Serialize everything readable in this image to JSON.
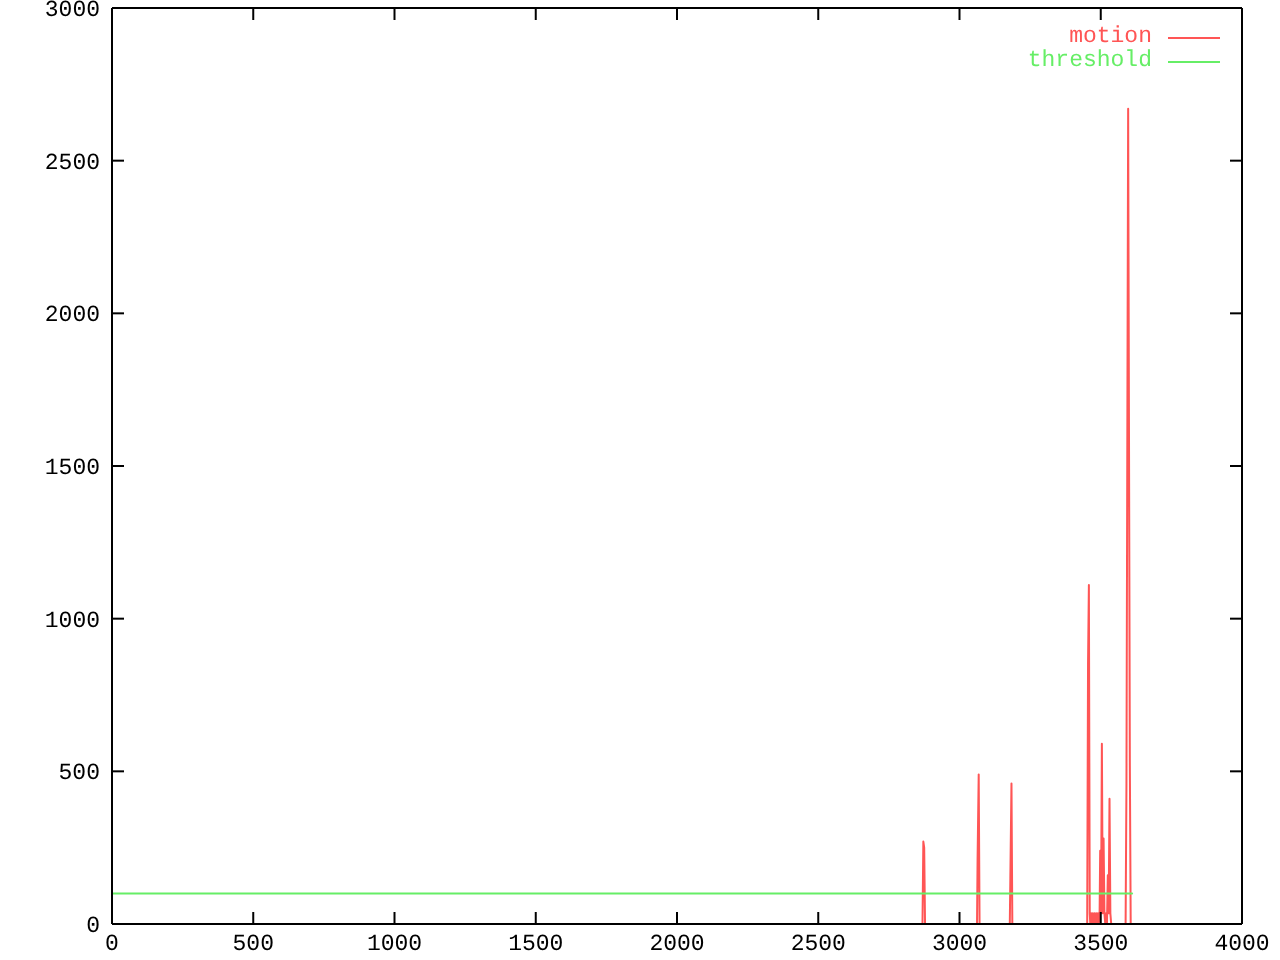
{
  "chart_data": {
    "type": "line",
    "xlim": [
      0,
      4000
    ],
    "xticks": [
      0,
      500,
      1000,
      1500,
      2000,
      2500,
      3000,
      3500,
      4000
    ],
    "ylim": [
      0,
      3000
    ],
    "yticks": [
      0,
      500,
      1000,
      1500,
      2000,
      2500,
      3000
    ],
    "legend": "top right",
    "marker": "none",
    "line_style": "solid",
    "series": [
      {
        "name": "motion",
        "color": "#ff5555",
        "x": [
          0,
          2869,
          2872,
          2875,
          2878,
          3062,
          3064,
          3068,
          3071,
          3178,
          3180,
          3184,
          3187,
          3452,
          3455,
          3458,
          3461,
          3463,
          3466,
          3469,
          3472,
          3475,
          3478,
          3481,
          3484,
          3487,
          3490,
          3493,
          3496,
          3498,
          3501,
          3504,
          3507,
          3510,
          3513,
          3516,
          3519,
          3522,
          3525,
          3528,
          3531,
          3534,
          3537,
          3588,
          3591,
          3597,
          3603,
          3606,
          3611
        ],
        "values": [
          0,
          0,
          270,
          250,
          0,
          0,
          210,
          490,
          0,
          0,
          150,
          460,
          0,
          0,
          850,
          1110,
          35,
          0,
          35,
          0,
          35,
          0,
          35,
          0,
          35,
          0,
          35,
          0,
          35,
          240,
          35,
          590,
          35,
          280,
          35,
          0,
          35,
          0,
          160,
          35,
          410,
          35,
          0,
          0,
          460,
          2670,
          520,
          0,
          0
        ]
      },
      {
        "name": "threshold",
        "color": "#66ee66",
        "x": [
          0,
          3611
        ],
        "values": [
          100,
          100
        ]
      }
    ]
  }
}
